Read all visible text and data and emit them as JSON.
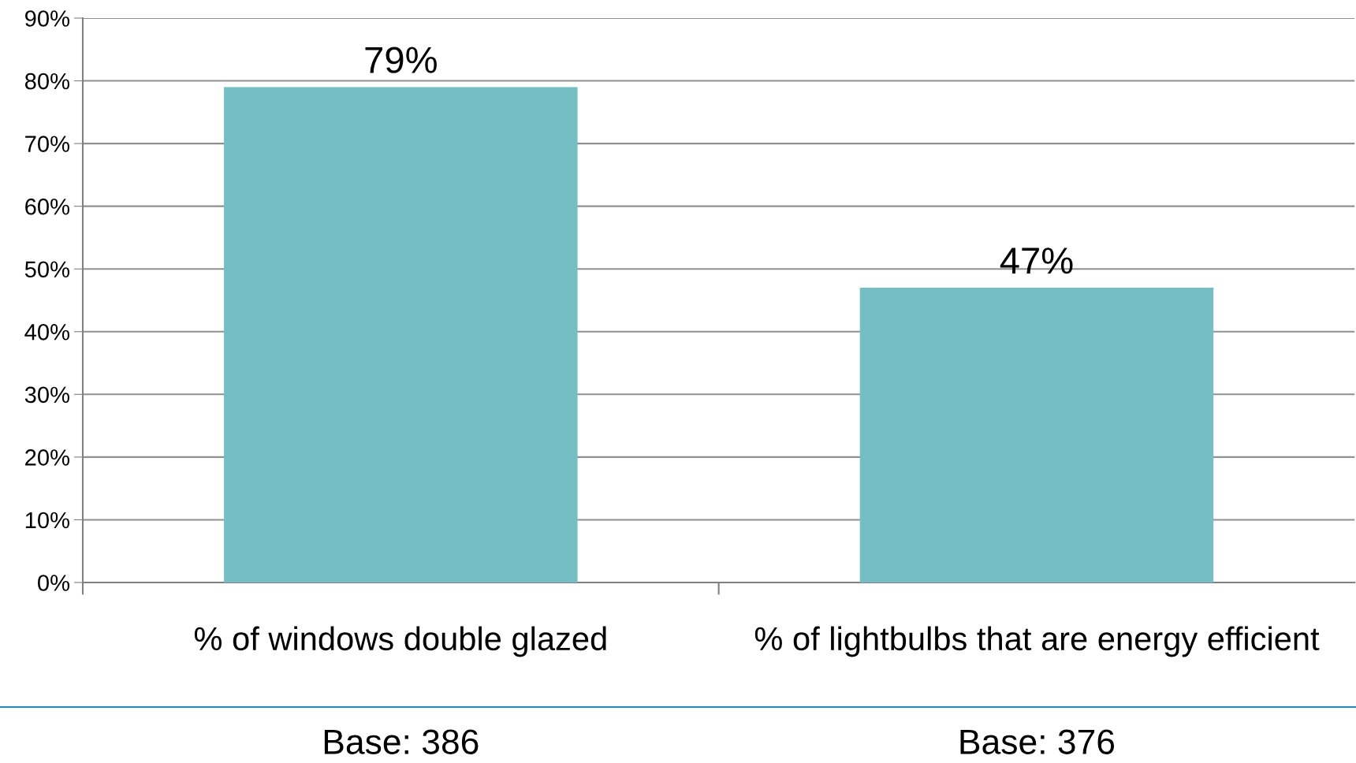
{
  "chart_data": {
    "type": "bar",
    "categories": [
      "% of windows double glazed",
      "% of lightbulbs that are energy efficient"
    ],
    "values": [
      79,
      47
    ],
    "value_labels": [
      "79%",
      "47%"
    ],
    "color": "#73bfc5",
    "ylim": [
      0,
      90
    ],
    "yticks": [
      {
        "value": 0,
        "label": "0%"
      },
      {
        "value": 10,
        "label": "10%"
      },
      {
        "value": 20,
        "label": "20%"
      },
      {
        "value": 30,
        "label": "30%"
      },
      {
        "value": 40,
        "label": "40%"
      },
      {
        "value": 50,
        "label": "50%"
      },
      {
        "value": 60,
        "label": "60%"
      },
      {
        "value": 70,
        "label": "70%"
      },
      {
        "value": 80,
        "label": "80%"
      },
      {
        "value": 90,
        "label": "90%"
      }
    ],
    "grid": "y",
    "annotations": [
      "Base: 386",
      "Base: 376"
    ]
  }
}
